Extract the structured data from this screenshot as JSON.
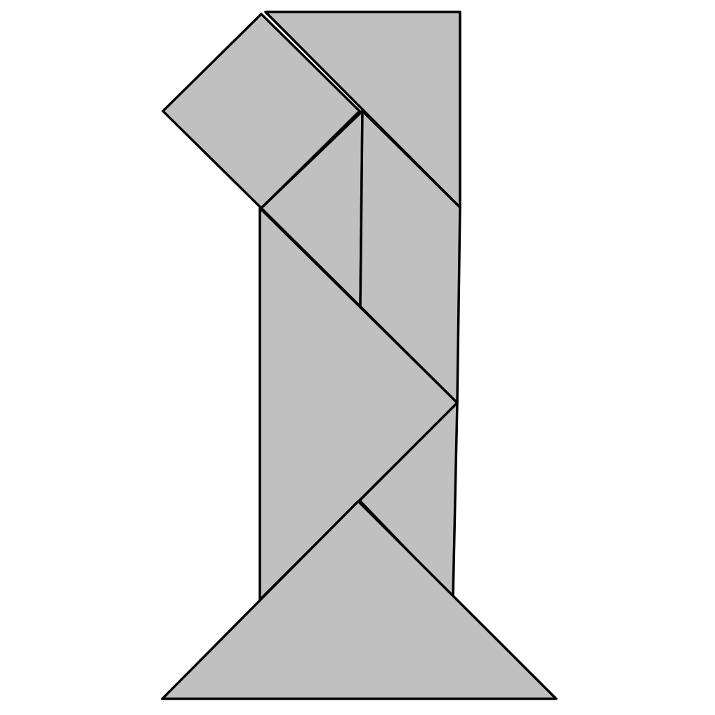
{
  "figure": {
    "kind": "tangram",
    "pieces": [
      {
        "id": "top-right-small-triangle",
        "shape": "triangle"
      },
      {
        "id": "upper-left-square",
        "shape": "square"
      },
      {
        "id": "upper-center-small-triangle",
        "shape": "triangle"
      },
      {
        "id": "right-parallelogram",
        "shape": "parallelogram"
      },
      {
        "id": "middle-large-triangle",
        "shape": "triangle"
      },
      {
        "id": "lower-right-medium-triangle",
        "shape": "triangle"
      },
      {
        "id": "base-large-triangle",
        "shape": "triangle"
      }
    ]
  },
  "colors": {
    "fill": "#c0c0c0",
    "stroke": "#000000",
    "background": "#ffffff"
  }
}
